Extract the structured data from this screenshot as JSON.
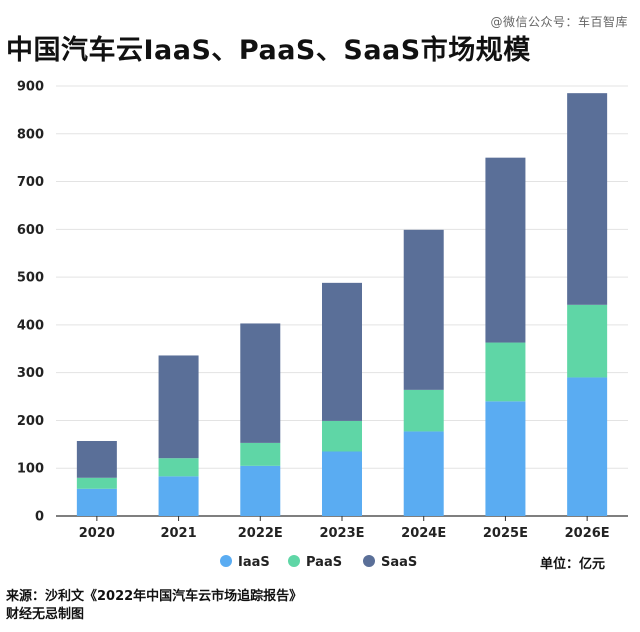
{
  "watermark": "@微信公众号：车百智库",
  "title": "中国汽车云IaaS、PaaS、SaaS市场规模",
  "unit_label": "单位：亿元",
  "source": {
    "line1": "来源：沙利文《2022年中国汽车云市场追踪报告》",
    "line2": "财经无忌制图"
  },
  "colors": {
    "IaaS": "#5aacf2",
    "PaaS": "#5fd6a6",
    "SaaS": "#5a6f98",
    "grid": "#e3e3e3",
    "axis": "#333333"
  },
  "chart_data": {
    "type": "bar",
    "stacked": true,
    "categories": [
      "2020",
      "2021",
      "2022E",
      "2023E",
      "2024E",
      "2025E",
      "2026E"
    ],
    "series": [
      {
        "name": "IaaS",
        "values": [
          57,
          83,
          105,
          135,
          177,
          240,
          290
        ]
      },
      {
        "name": "PaaS",
        "values": [
          23,
          38,
          48,
          64,
          87,
          123,
          152
        ]
      },
      {
        "name": "SaaS",
        "values": [
          77,
          215,
          250,
          289,
          335,
          387,
          443
        ]
      }
    ],
    "ylim": [
      0,
      900
    ],
    "yticks": [
      0,
      100,
      200,
      300,
      400,
      500,
      600,
      700,
      800,
      900
    ],
    "grid": true,
    "legend": "bottom-center"
  }
}
